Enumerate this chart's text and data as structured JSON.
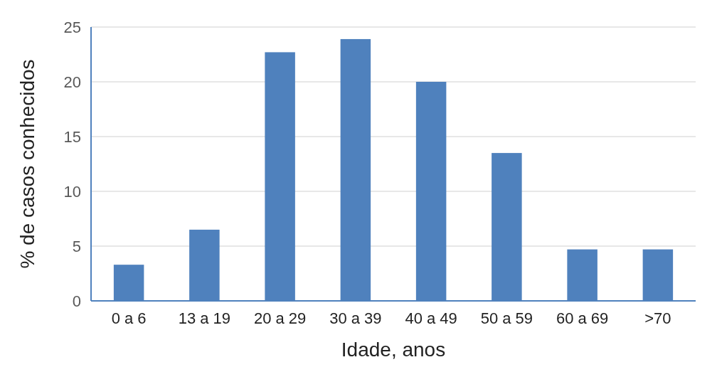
{
  "chart_data": {
    "type": "bar",
    "xlabel": "Idade, anos",
    "ylabel": "% de casos conhecidos",
    "categories": [
      "0 a 6",
      "13 a 19",
      "20 a 29",
      "30 a 39",
      "40 a 49",
      "50 a 59",
      "60 a 69",
      ">70"
    ],
    "values": [
      3.3,
      6.5,
      22.7,
      23.9,
      20,
      13.5,
      4.7,
      4.7
    ],
    "color": "#4f81bd",
    "ylim": [
      0,
      25
    ],
    "yticks": [
      0,
      5,
      10,
      15,
      20,
      25
    ],
    "grid": "y"
  }
}
